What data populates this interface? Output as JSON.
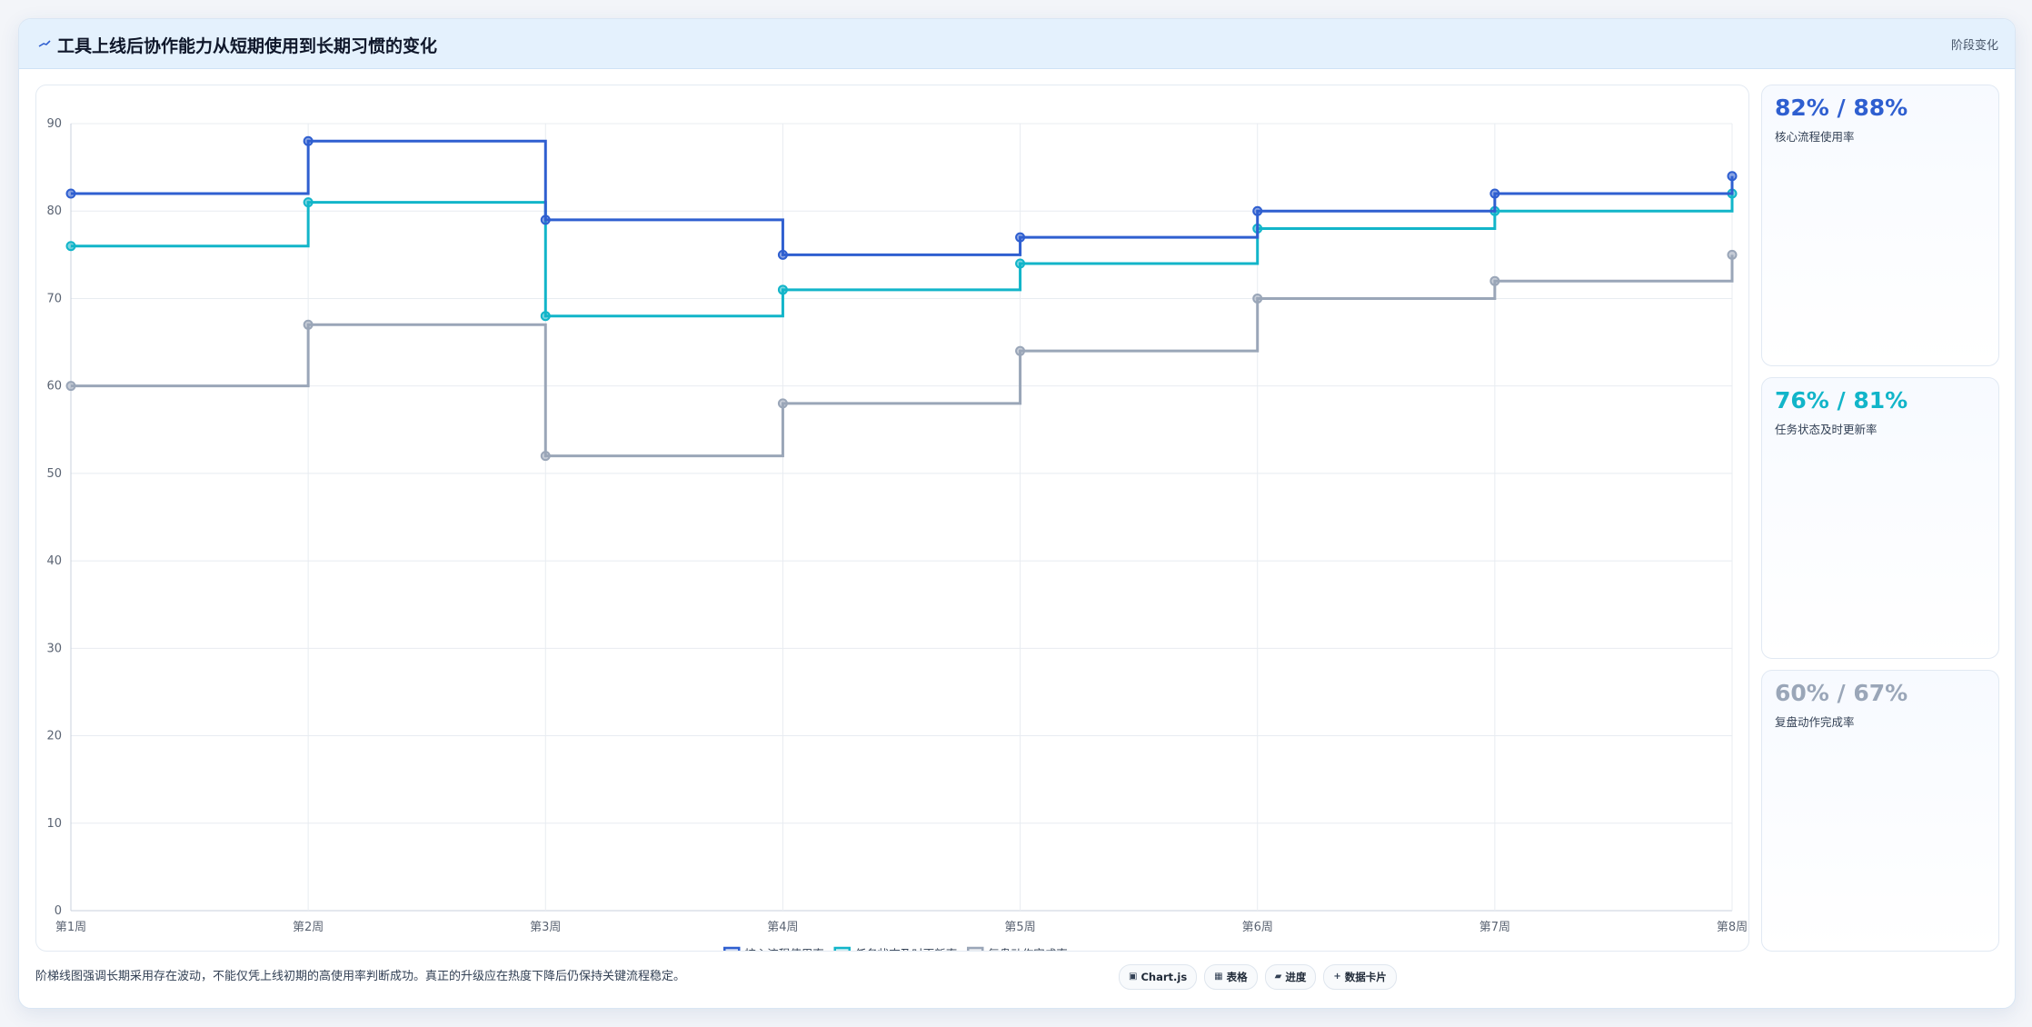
{
  "header": {
    "title": "工具上线后协作能力从短期使用到长期习惯的变化",
    "tag": "阶段变化",
    "icon": "trend-line-icon"
  },
  "colors": {
    "core": "#2f5fd0",
    "task": "#12b5c9",
    "review": "#9aa6b8"
  },
  "chart_data": {
    "type": "line",
    "step": true,
    "categories": [
      "第1周",
      "第2周",
      "第3周",
      "第4周",
      "第5周",
      "第6周",
      "第7周",
      "第8周"
    ],
    "ylim": [
      0,
      90
    ],
    "yticks": [
      0,
      10,
      20,
      30,
      40,
      50,
      60,
      70,
      80,
      90
    ],
    "grid": true,
    "legend": "bottom",
    "series": [
      {
        "name": "核心流程使用率",
        "color": "#2f5fd0",
        "values": [
          82,
          88,
          79,
          75,
          77,
          80,
          82,
          84
        ]
      },
      {
        "name": "任务状态及时更新率",
        "color": "#12b5c9",
        "values": [
          76,
          81,
          68,
          71,
          74,
          78,
          80,
          82
        ]
      },
      {
        "name": "复盘动作完成率",
        "color": "#9aa6b8",
        "values": [
          60,
          67,
          52,
          58,
          64,
          70,
          72,
          75
        ]
      }
    ]
  },
  "stats": [
    {
      "value": "82% / 88%",
      "label": "核心流程使用率",
      "color": "#2f5fd0"
    },
    {
      "value": "76% / 81%",
      "label": "任务状态及时更新率",
      "color": "#12b5c9"
    },
    {
      "value": "60% / 67%",
      "label": "复盘动作完成率",
      "color": "#9aa6b8"
    }
  ],
  "footer": {
    "note": "阶梯线图强调长期采用存在波动，不能仅凭上线初期的高使用率判断成功。真正的升级应在热度下降后仍保持关键流程稳定。",
    "chips": [
      {
        "icon": "▣",
        "icon_name": "chart-icon",
        "label": "Chart.js"
      },
      {
        "icon": "▦",
        "icon_name": "table-icon",
        "label": "表格"
      },
      {
        "icon": "▰",
        "icon_name": "progress-icon",
        "label": "进度"
      },
      {
        "icon": "+",
        "icon_name": "plus-icon",
        "label": "数据卡片"
      }
    ]
  }
}
